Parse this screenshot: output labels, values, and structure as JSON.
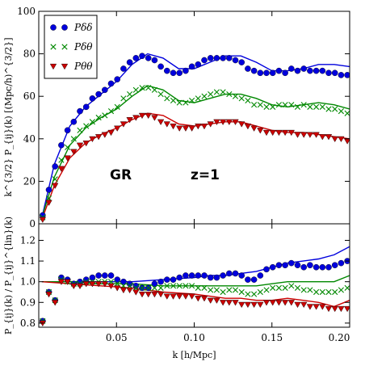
{
  "chart_data": [
    {
      "type": "scatter",
      "panel": "top",
      "xlim": [
        0.0,
        0.2
      ],
      "ylim": [
        0,
        100
      ],
      "yticks": [
        0,
        20,
        40,
        60,
        80,
        100
      ],
      "ytick_labels": [
        "0",
        "20",
        "40",
        "60",
        "80",
        "100"
      ],
      "ylabel": "k^{3/2} P_{ij}(k) [(Mpc/h)^{3/2}]",
      "legend_placement": "top-left",
      "annotations": [
        "GR",
        "z=1"
      ],
      "series": [
        {
          "name": "Pδδ",
          "kind": "measured",
          "color": "#0000dd",
          "marker": "circle",
          "x": [
            0.0025,
            0.0065,
            0.0105,
            0.0145,
            0.0185,
            0.0225,
            0.0265,
            0.0305,
            0.0345,
            0.0385,
            0.0425,
            0.0465,
            0.0505,
            0.0545,
            0.0585,
            0.0625,
            0.0665,
            0.0705,
            0.0745,
            0.0785,
            0.0825,
            0.0865,
            0.0905,
            0.0945,
            0.0985,
            0.1025,
            0.1065,
            0.1105,
            0.1145,
            0.1185,
            0.1225,
            0.1265,
            0.1305,
            0.1345,
            0.1385,
            0.1425,
            0.1465,
            0.1505,
            0.1545,
            0.1585,
            0.1625,
            0.1665,
            0.1705,
            0.1745,
            0.1785,
            0.1825,
            0.1865,
            0.1905,
            0.1945,
            0.1985
          ],
          "y": [
            4,
            16,
            27,
            37,
            44,
            48,
            53,
            55,
            59,
            61,
            63,
            66,
            68,
            73,
            76,
            78,
            79,
            78,
            77,
            74,
            72,
            71,
            71,
            72,
            74,
            75,
            77,
            78,
            78,
            78,
            78,
            77,
            76,
            73,
            72,
            71,
            71,
            71,
            72,
            71,
            73,
            72,
            73,
            72,
            72,
            72,
            71,
            71,
            70,
            70
          ]
        },
        {
          "name": "Pδθ",
          "kind": "measured",
          "color": "#008800",
          "marker": "x",
          "x": [
            0.0025,
            0.0065,
            0.0105,
            0.0145,
            0.0185,
            0.0225,
            0.0265,
            0.0305,
            0.0345,
            0.0385,
            0.0425,
            0.0465,
            0.0505,
            0.0545,
            0.0585,
            0.0625,
            0.0665,
            0.0705,
            0.0745,
            0.0785,
            0.0825,
            0.0865,
            0.0905,
            0.0945,
            0.0985,
            0.1025,
            0.1065,
            0.1105,
            0.1145,
            0.1185,
            0.1225,
            0.1265,
            0.1305,
            0.1345,
            0.1385,
            0.1425,
            0.1465,
            0.1505,
            0.1545,
            0.1585,
            0.1625,
            0.1665,
            0.1705,
            0.1745,
            0.1785,
            0.1825,
            0.1865,
            0.1905,
            0.1945,
            0.1985
          ],
          "y": [
            3,
            12,
            21,
            30,
            36,
            40,
            44,
            46,
            48,
            50,
            51,
            53,
            55,
            59,
            61,
            63,
            64,
            64,
            63,
            61,
            59,
            58,
            57,
            57,
            58,
            59,
            60,
            61,
            62,
            62,
            61,
            60,
            59,
            58,
            56,
            56,
            55,
            55,
            56,
            56,
            56,
            55,
            56,
            55,
            55,
            55,
            54,
            54,
            53,
            52
          ]
        },
        {
          "name": "Pθθ",
          "kind": "measured",
          "color": "#cc0000",
          "marker": "triangle-down",
          "x": [
            0.0025,
            0.0065,
            0.0105,
            0.0145,
            0.0185,
            0.0225,
            0.0265,
            0.0305,
            0.0345,
            0.0385,
            0.0425,
            0.0465,
            0.0505,
            0.0545,
            0.0585,
            0.0625,
            0.0665,
            0.0705,
            0.0745,
            0.0785,
            0.0825,
            0.0865,
            0.0905,
            0.0945,
            0.0985,
            0.1025,
            0.1065,
            0.1105,
            0.1145,
            0.1185,
            0.1225,
            0.1265,
            0.1305,
            0.1345,
            0.1385,
            0.1425,
            0.1465,
            0.1505,
            0.1545,
            0.1585,
            0.1625,
            0.1665,
            0.1705,
            0.1745,
            0.1785,
            0.1825,
            0.1865,
            0.1905,
            0.1945,
            0.1985
          ],
          "y": [
            2,
            10,
            18,
            26,
            31,
            34,
            37,
            38,
            40,
            41,
            42,
            43,
            45,
            47,
            49,
            50,
            51,
            51,
            50,
            48,
            47,
            46,
            45,
            45,
            45,
            46,
            46,
            47,
            48,
            48,
            48,
            48,
            47,
            46,
            45,
            44,
            43,
            43,
            43,
            43,
            43,
            42,
            42,
            42,
            42,
            41,
            41,
            40,
            40,
            39
          ]
        },
        {
          "name": "",
          "kind": "linear",
          "color": "#0000dd",
          "x": [
            0.002,
            0.01,
            0.02,
            0.03,
            0.04,
            0.05,
            0.06,
            0.07,
            0.08,
            0.09,
            0.1,
            0.11,
            0.12,
            0.13,
            0.14,
            0.15,
            0.16,
            0.17,
            0.18,
            0.19,
            0.2
          ],
          "y": [
            3,
            28,
            46,
            55,
            61,
            67,
            75,
            80,
            78,
            73,
            73,
            76,
            79,
            79,
            76,
            72,
            72,
            73,
            75,
            75,
            74
          ]
        },
        {
          "name": "",
          "kind": "linear",
          "color": "#008800",
          "x": [
            0.002,
            0.01,
            0.02,
            0.03,
            0.04,
            0.05,
            0.06,
            0.07,
            0.08,
            0.09,
            0.1,
            0.11,
            0.12,
            0.13,
            0.14,
            0.15,
            0.16,
            0.17,
            0.18,
            0.19,
            0.2
          ],
          "y": [
            3,
            22,
            37,
            45,
            50,
            54,
            60,
            65,
            63,
            58,
            57,
            59,
            61,
            61,
            59,
            56,
            55,
            56,
            57,
            56,
            54
          ]
        },
        {
          "name": "",
          "kind": "linear",
          "color": "#cc0000",
          "x": [
            0.002,
            0.01,
            0.02,
            0.03,
            0.04,
            0.05,
            0.06,
            0.07,
            0.08,
            0.09,
            0.1,
            0.11,
            0.12,
            0.13,
            0.14,
            0.15,
            0.16,
            0.17,
            0.18,
            0.19,
            0.2
          ],
          "y": [
            2,
            18,
            31,
            38,
            42,
            45,
            49,
            52,
            51,
            47,
            46,
            47,
            48,
            48,
            46,
            44,
            43,
            43,
            42,
            41,
            40
          ]
        }
      ]
    },
    {
      "type": "scatter",
      "panel": "bottom",
      "xlim": [
        0.0,
        0.2
      ],
      "ylim": [
        0.78,
        1.28
      ],
      "xticks": [
        0.05,
        0.1,
        0.15,
        0.2
      ],
      "xtick_labels": [
        "0.05",
        "0.10",
        "0.15",
        "0.20"
      ],
      "yticks": [
        0.8,
        0.9,
        1.0,
        1.1,
        1.2
      ],
      "ytick_labels": [
        "0.8",
        "0.9",
        "1.0",
        "1.1",
        "1.2"
      ],
      "xlabel": "k [h/Mpc]",
      "ylabel": "P_{ij}(k) / P_{ij}^{lin}(k)",
      "series": [
        {
          "name": "Pδδ",
          "kind": "measured",
          "color": "#0000dd",
          "marker": "circle",
          "x": [
            0.0025,
            0.0065,
            0.0105,
            0.0145,
            0.0185,
            0.0225,
            0.0265,
            0.0305,
            0.0345,
            0.0385,
            0.0425,
            0.0465,
            0.0505,
            0.0545,
            0.0585,
            0.0625,
            0.0665,
            0.0705,
            0.0745,
            0.0785,
            0.0825,
            0.0865,
            0.0905,
            0.0945,
            0.0985,
            0.1025,
            0.1065,
            0.1105,
            0.1145,
            0.1185,
            0.1225,
            0.1265,
            0.1305,
            0.1345,
            0.1385,
            0.1425,
            0.1465,
            0.1505,
            0.1545,
            0.1585,
            0.1625,
            0.1665,
            0.1705,
            0.1745,
            0.1785,
            0.1825,
            0.1865,
            0.1905,
            0.1945,
            0.1985
          ],
          "y": [
            0.81,
            0.95,
            0.91,
            1.02,
            1.01,
            0.99,
            1.0,
            1.01,
            1.02,
            1.03,
            1.03,
            1.03,
            1.01,
            1.0,
            0.99,
            0.98,
            0.97,
            0.97,
            0.99,
            1.0,
            1.01,
            1.01,
            1.02,
            1.03,
            1.03,
            1.03,
            1.03,
            1.02,
            1.02,
            1.03,
            1.04,
            1.04,
            1.03,
            1.01,
            1.01,
            1.03,
            1.06,
            1.07,
            1.08,
            1.08,
            1.09,
            1.08,
            1.07,
            1.08,
            1.07,
            1.07,
            1.07,
            1.08,
            1.09,
            1.1
          ]
        },
        {
          "name": "Pδθ",
          "kind": "measured",
          "color": "#008800",
          "marker": "x",
          "x": [
            0.0025,
            0.0065,
            0.0105,
            0.0145,
            0.0185,
            0.0225,
            0.0265,
            0.0305,
            0.0345,
            0.0385,
            0.0425,
            0.0465,
            0.0505,
            0.0545,
            0.0585,
            0.0625,
            0.0665,
            0.0705,
            0.0745,
            0.0785,
            0.0825,
            0.0865,
            0.0905,
            0.0945,
            0.0985,
            0.1025,
            0.1065,
            0.1105,
            0.1145,
            0.1185,
            0.1225,
            0.1265,
            0.1305,
            0.1345,
            0.1385,
            0.1425,
            0.1465,
            0.1505,
            0.1545,
            0.1585,
            0.1625,
            0.1665,
            0.1705,
            0.1745,
            0.1785,
            0.1825,
            0.1865,
            0.1905,
            0.1945,
            0.1985
          ],
          "y": [
            0.81,
            0.95,
            0.91,
            1.01,
            1.0,
            0.99,
            0.99,
            1.0,
            1.0,
            1.0,
            1.0,
            1.0,
            0.99,
            0.98,
            0.98,
            0.97,
            0.97,
            0.97,
            0.97,
            0.97,
            0.98,
            0.98,
            0.98,
            0.98,
            0.98,
            0.97,
            0.97,
            0.96,
            0.96,
            0.95,
            0.96,
            0.96,
            0.95,
            0.94,
            0.94,
            0.95,
            0.96,
            0.97,
            0.97,
            0.97,
            0.98,
            0.97,
            0.96,
            0.96,
            0.95,
            0.95,
            0.95,
            0.95,
            0.96,
            0.97
          ]
        },
        {
          "name": "Pθθ",
          "kind": "measured",
          "color": "#cc0000",
          "marker": "triangle-down",
          "x": [
            0.0025,
            0.0065,
            0.0105,
            0.0145,
            0.0185,
            0.0225,
            0.0265,
            0.0305,
            0.0345,
            0.0385,
            0.0425,
            0.0465,
            0.0505,
            0.0545,
            0.0585,
            0.0625,
            0.0665,
            0.0705,
            0.0745,
            0.0785,
            0.0825,
            0.0865,
            0.0905,
            0.0945,
            0.0985,
            0.1025,
            0.1065,
            0.1105,
            0.1145,
            0.1185,
            0.1225,
            0.1265,
            0.1305,
            0.1345,
            0.1385,
            0.1425,
            0.1465,
            0.1505,
            0.1545,
            0.1585,
            0.1625,
            0.1665,
            0.1705,
            0.1745,
            0.1785,
            0.1825,
            0.1865,
            0.1905,
            0.1945,
            0.1985
          ],
          "y": [
            0.8,
            0.94,
            0.9,
            1.0,
            1.0,
            0.98,
            0.98,
            0.99,
            0.99,
            0.99,
            0.99,
            0.98,
            0.97,
            0.96,
            0.96,
            0.95,
            0.94,
            0.94,
            0.94,
            0.94,
            0.93,
            0.93,
            0.93,
            0.93,
            0.93,
            0.92,
            0.92,
            0.91,
            0.91,
            0.9,
            0.9,
            0.9,
            0.89,
            0.89,
            0.89,
            0.89,
            0.9,
            0.9,
            0.9,
            0.9,
            0.9,
            0.89,
            0.89,
            0.88,
            0.88,
            0.88,
            0.87,
            0.87,
            0.87,
            0.87
          ]
        },
        {
          "name": "",
          "kind": "model",
          "color": "#0000dd",
          "x": [
            0.002,
            0.02,
            0.04,
            0.06,
            0.08,
            0.1,
            0.11,
            0.12,
            0.13,
            0.14,
            0.15,
            0.16,
            0.17,
            0.18,
            0.19,
            0.2
          ],
          "y": [
            1.0,
            1.0,
            1.0,
            1.0,
            1.01,
            1.02,
            1.03,
            1.03,
            1.04,
            1.05,
            1.07,
            1.09,
            1.1,
            1.11,
            1.13,
            1.17
          ]
        },
        {
          "name": "",
          "kind": "model",
          "color": "#008800",
          "x": [
            0.002,
            0.02,
            0.04,
            0.06,
            0.08,
            0.1,
            0.11,
            0.12,
            0.13,
            0.14,
            0.15,
            0.16,
            0.17,
            0.18,
            0.19,
            0.2
          ],
          "y": [
            1.0,
            1.0,
            0.99,
            0.99,
            0.98,
            0.98,
            0.98,
            0.98,
            0.98,
            0.98,
            0.99,
            1.0,
            1.0,
            1.0,
            1.0,
            1.03
          ]
        },
        {
          "name": "",
          "kind": "model",
          "color": "#cc0000",
          "x": [
            0.002,
            0.02,
            0.04,
            0.06,
            0.08,
            0.1,
            0.11,
            0.12,
            0.13,
            0.14,
            0.15,
            0.16,
            0.17,
            0.18,
            0.19,
            0.2
          ],
          "y": [
            1.0,
            0.99,
            0.98,
            0.97,
            0.95,
            0.94,
            0.93,
            0.92,
            0.92,
            0.91,
            0.91,
            0.92,
            0.91,
            0.9,
            0.88,
            0.91
          ]
        }
      ]
    }
  ]
}
